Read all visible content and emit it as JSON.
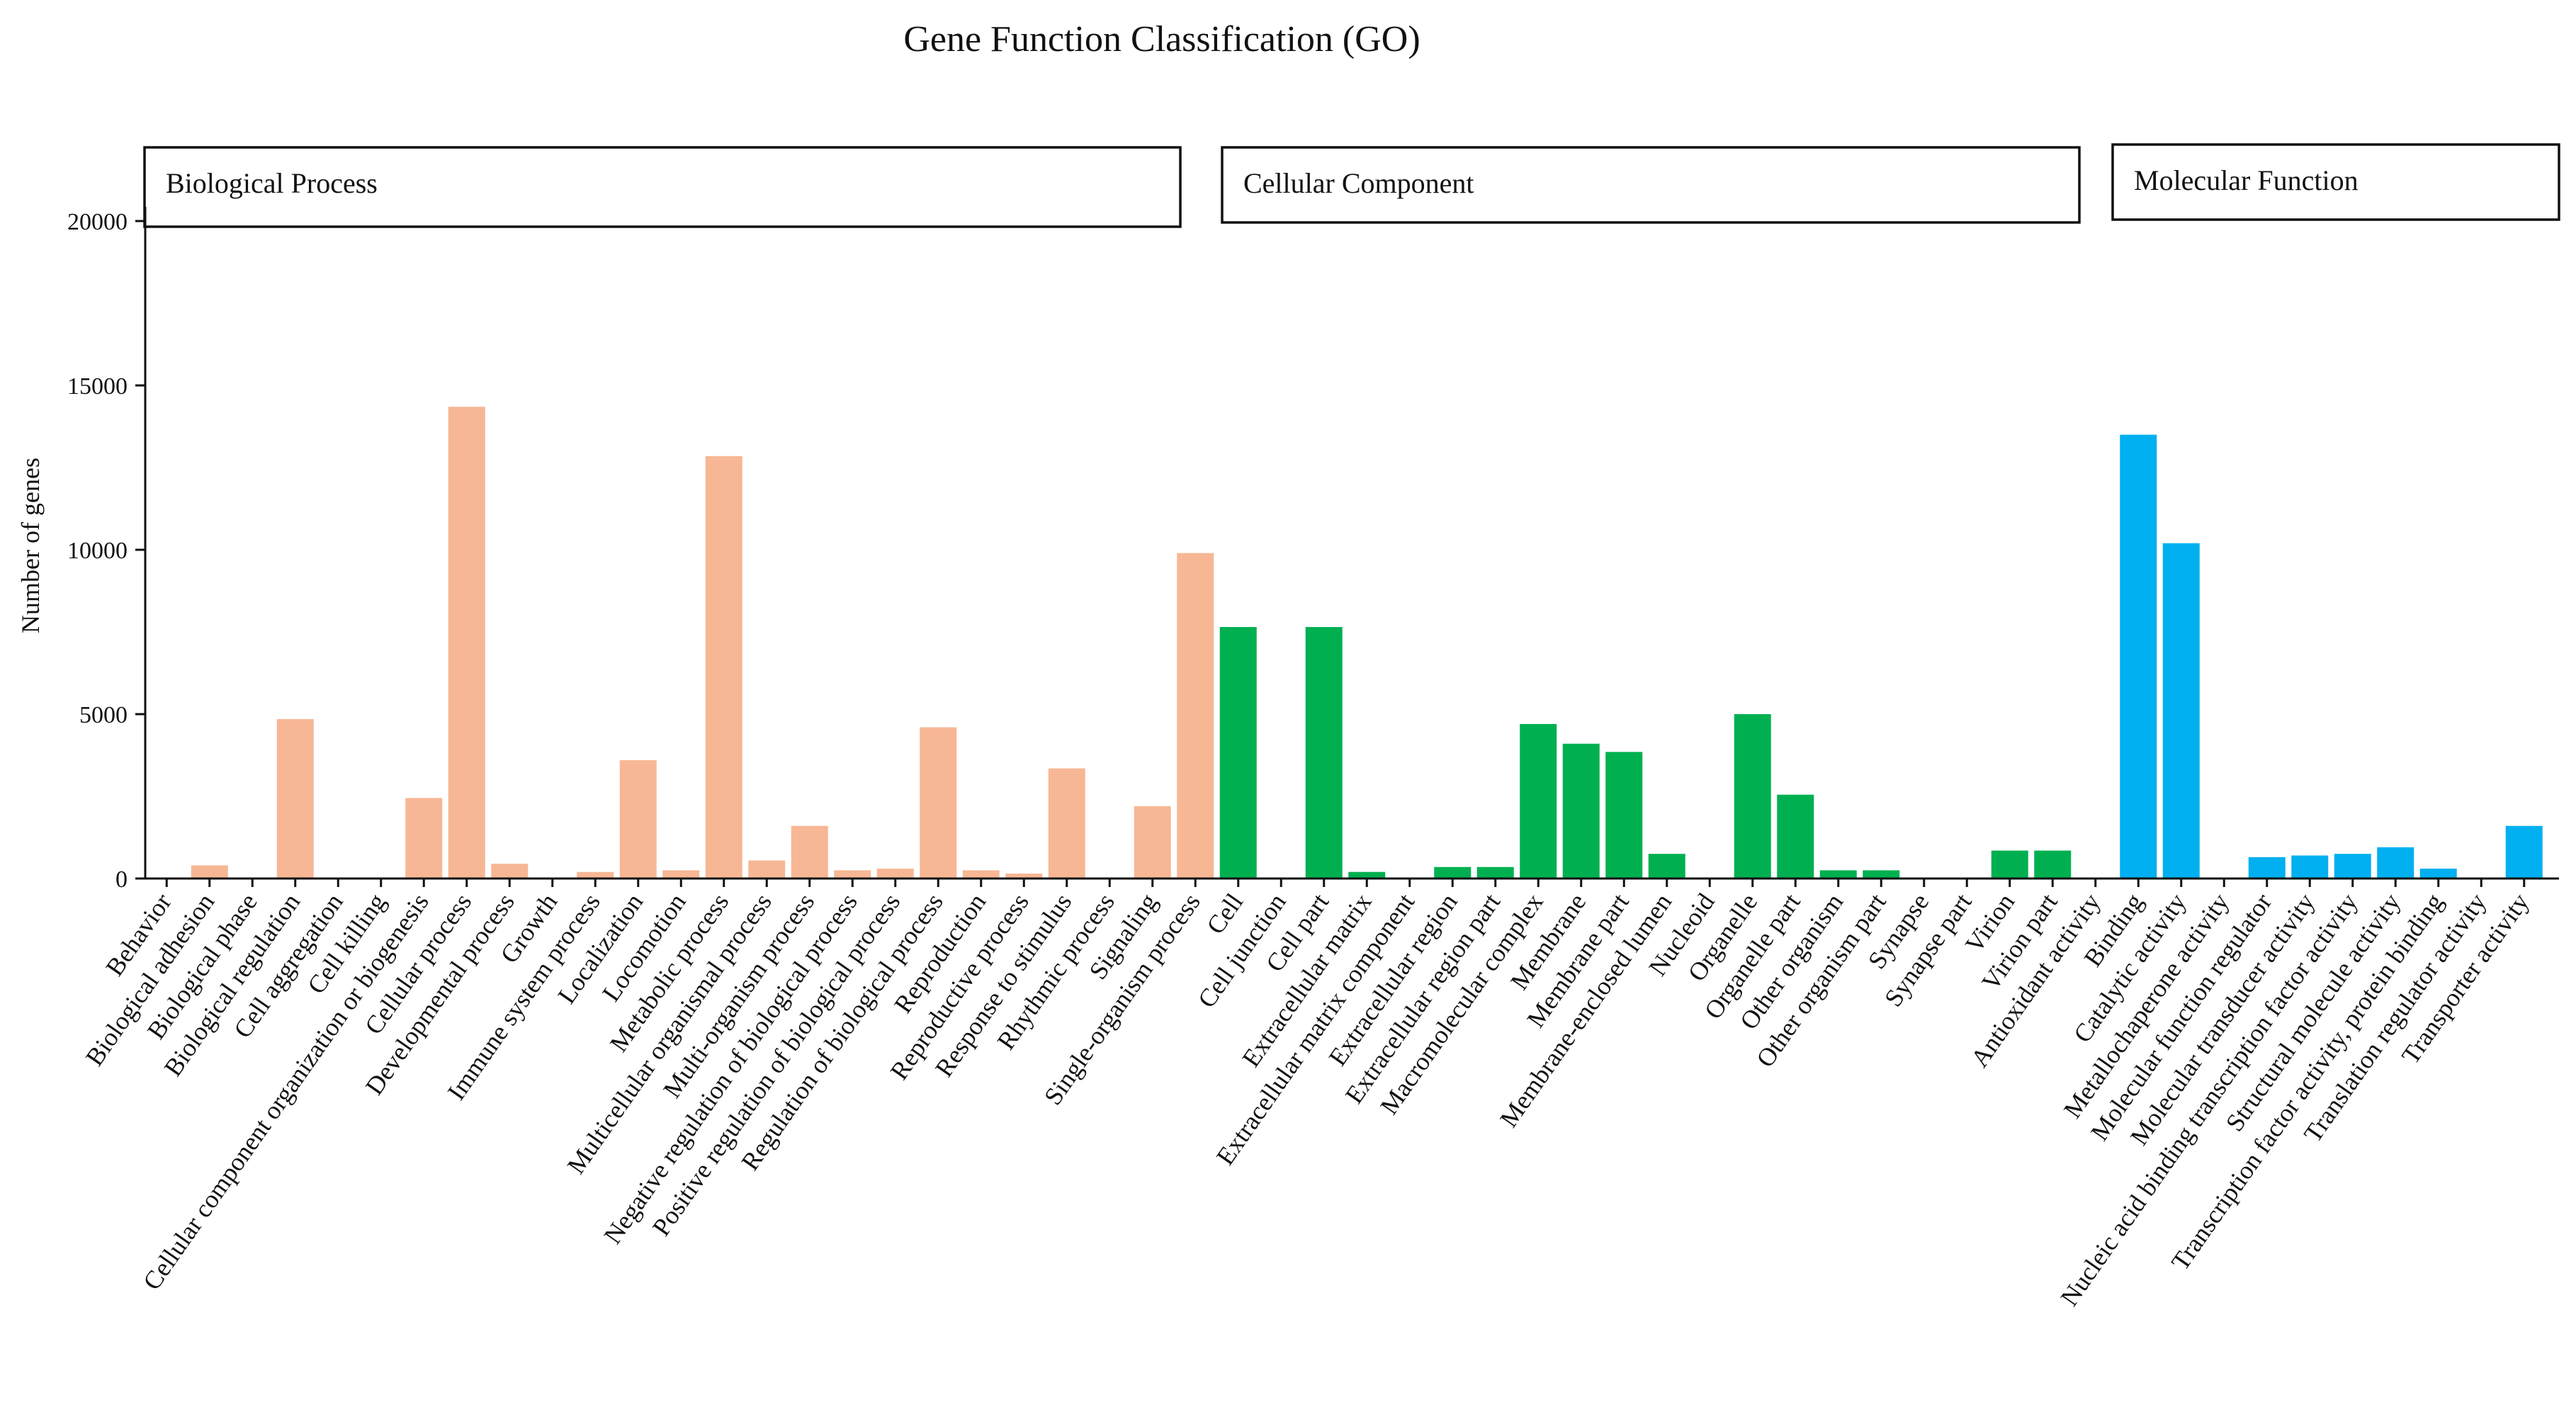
{
  "chart_data": {
    "type": "bar",
    "title": "Gene Function Classification (GO)",
    "xlabel": "",
    "ylabel": "Number of genes",
    "ylim": [
      0,
      20000
    ],
    "yticks": [
      0,
      5000,
      10000,
      15000,
      20000
    ],
    "grid": false,
    "groups": [
      {
        "name": "Biological Process",
        "color": "#F7B795",
        "categories": [
          "Behavior",
          "Biological adhesion",
          "Biological phase",
          "Biological regulation",
          "Cell aggregation",
          "Cell killing",
          "Cellular component organization or biogenesis",
          "Cellular process",
          "Developmental process",
          "Growth",
          "Immune system process",
          "Localization",
          "Locomotion",
          "Metabolic process",
          "Multicellular organismal process",
          "Multi-organism process",
          "Negative regulation of biological process",
          "Positive regulation of biological process",
          "Regulation of biological process",
          "Reproduction",
          "Reproductive process",
          "Response to stimulus",
          "Rhythmic process",
          "Signaling",
          "Single-organism process"
        ],
        "values": [
          0,
          400,
          20,
          4850,
          10,
          10,
          2450,
          14350,
          450,
          20,
          200,
          3600,
          250,
          12850,
          550,
          1600,
          250,
          300,
          4600,
          250,
          150,
          3350,
          20,
          2200,
          9900
        ]
      },
      {
        "name": "Cellular Component",
        "color": "#00B050",
        "categories": [
          "Cell",
          "Cell junction",
          "Cell part",
          "Extracellular matrix",
          "Extracellular matrix component",
          "Extracellular region",
          "Extracellular region part",
          "Macromolecular complex",
          "Membrane",
          "Membrane part",
          "Membrane-enclosed lumen",
          "Nucleoid",
          "Organelle",
          "Organelle part",
          "Other organism",
          "Other organism part",
          "Synapse",
          "Synapse part",
          "Virion",
          "Virion part"
        ],
        "values": [
          7650,
          20,
          7650,
          200,
          20,
          350,
          350,
          4700,
          4100,
          3850,
          750,
          20,
          5000,
          2550,
          250,
          250,
          20,
          20,
          850,
          850
        ]
      },
      {
        "name": "Molecular Function",
        "color": "#00B0F0",
        "categories": [
          "Antioxidant activity",
          "Binding",
          "Catalytic activity",
          "Metallochaperone activity",
          "Molecular function regulator",
          "Molecular transducer activity",
          "Nucleic acid binding transcription factor activity",
          "Structural molecule activity",
          "Transcription factor activity, protein binding",
          "Translation regulator activity",
          "Transporter activity"
        ],
        "values": [
          20,
          13500,
          10200,
          10,
          650,
          700,
          750,
          950,
          300,
          20,
          1600
        ]
      }
    ]
  }
}
